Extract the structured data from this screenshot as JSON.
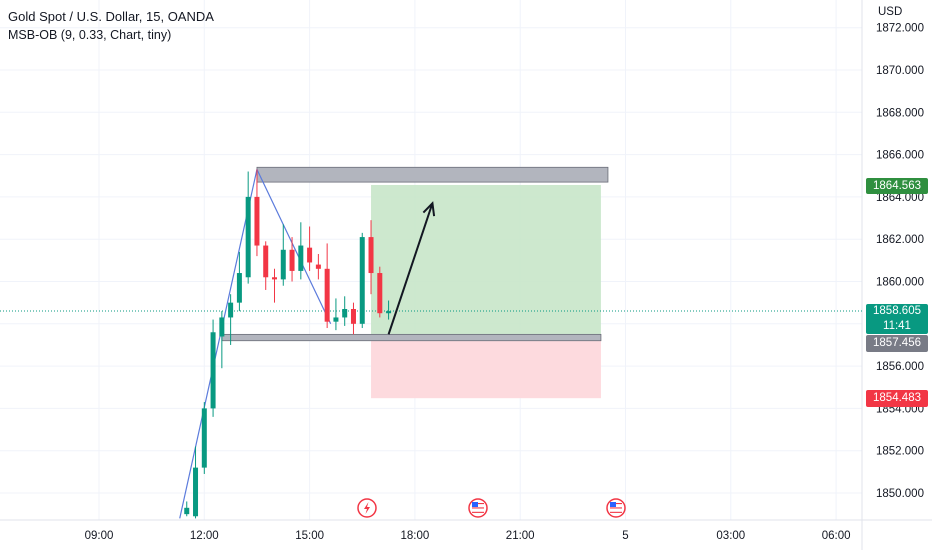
{
  "header": {
    "title": "Gold Spot / U.S. Dollar, 15, OANDA",
    "indicator": "MSB-OB (9, 0.33, Chart, tiny)"
  },
  "axis": {
    "currency": "USD"
  },
  "price_badges": {
    "target": "1864.563",
    "current_price": "1858.605",
    "countdown": "11:41",
    "entry": "1857.456",
    "stop": "1854.483"
  },
  "colors": {
    "bull": "#089981",
    "bear": "#f23645",
    "profit_zone": "#c8e6c9",
    "loss_zone": "#fdd8dc",
    "order_block": "#b2b5be",
    "trendline": "#5b7bdc"
  },
  "icons": [
    "lightning-event-icon",
    "us-flag-event-icon",
    "us-flag-event-icon"
  ],
  "chart_data": {
    "type": "candlestick",
    "title": "Gold Spot / U.S. Dollar, 15, OANDA",
    "ylabel": "USD",
    "y_ticks": [
      "1850.000",
      "1852.000",
      "1854.000",
      "1856.000",
      "1858.000",
      "1860.000",
      "1862.000",
      "1864.000",
      "1866.000",
      "1868.000",
      "1870.000",
      "1872.000"
    ],
    "x_ticks": [
      "09:00",
      "12:00",
      "15:00",
      "18:00",
      "21:00",
      "5",
      "03:00",
      "06:00"
    ],
    "ylim": [
      1848.8,
      1872.4
    ],
    "grid": true,
    "candles": [
      {
        "t": 11.5,
        "o": 1849.0,
        "h": 1849.6,
        "l": 1848.9,
        "c": 1849.3
      },
      {
        "t": 11.75,
        "o": 1848.9,
        "h": 1852.2,
        "l": 1848.8,
        "c": 1851.2
      },
      {
        "t": 12.0,
        "o": 1851.2,
        "h": 1854.3,
        "l": 1850.9,
        "c": 1854.0
      },
      {
        "t": 12.25,
        "o": 1854.0,
        "h": 1858.2,
        "l": 1853.6,
        "c": 1857.6
      },
      {
        "t": 12.5,
        "o": 1857.4,
        "h": 1858.6,
        "l": 1855.9,
        "c": 1858.3
      },
      {
        "t": 12.75,
        "o": 1858.3,
        "h": 1859.4,
        "l": 1857.0,
        "c": 1859.0
      },
      {
        "t": 13.0,
        "o": 1859.0,
        "h": 1861.4,
        "l": 1858.6,
        "c": 1860.4
      },
      {
        "t": 13.25,
        "o": 1860.2,
        "h": 1865.2,
        "l": 1859.9,
        "c": 1864.0
      },
      {
        "t": 13.5,
        "o": 1864.0,
        "h": 1865.3,
        "l": 1861.2,
        "c": 1861.7
      },
      {
        "t": 13.75,
        "o": 1861.7,
        "h": 1861.9,
        "l": 1859.6,
        "c": 1860.2
      },
      {
        "t": 14.0,
        "o": 1860.2,
        "h": 1860.6,
        "l": 1859.0,
        "c": 1860.1
      },
      {
        "t": 14.25,
        "o": 1860.1,
        "h": 1862.7,
        "l": 1859.8,
        "c": 1861.5
      },
      {
        "t": 14.5,
        "o": 1861.5,
        "h": 1862.1,
        "l": 1860.0,
        "c": 1860.5
      },
      {
        "t": 14.75,
        "o": 1860.5,
        "h": 1862.8,
        "l": 1860.1,
        "c": 1861.7
      },
      {
        "t": 15.0,
        "o": 1861.6,
        "h": 1862.6,
        "l": 1860.5,
        "c": 1860.9
      },
      {
        "t": 15.25,
        "o": 1860.8,
        "h": 1861.3,
        "l": 1860.1,
        "c": 1860.6
      },
      {
        "t": 15.5,
        "o": 1860.6,
        "h": 1861.8,
        "l": 1857.8,
        "c": 1858.1
      },
      {
        "t": 15.75,
        "o": 1858.1,
        "h": 1859.2,
        "l": 1857.7,
        "c": 1858.3
      },
      {
        "t": 16.0,
        "o": 1858.3,
        "h": 1859.3,
        "l": 1857.9,
        "c": 1858.7
      },
      {
        "t": 16.25,
        "o": 1858.7,
        "h": 1859.0,
        "l": 1857.5,
        "c": 1858.0
      },
      {
        "t": 16.5,
        "o": 1858.0,
        "h": 1862.3,
        "l": 1857.8,
        "c": 1862.1
      },
      {
        "t": 16.75,
        "o": 1862.1,
        "h": 1862.9,
        "l": 1859.4,
        "c": 1860.4
      },
      {
        "t": 17.0,
        "o": 1860.4,
        "h": 1860.7,
        "l": 1858.3,
        "c": 1858.5
      },
      {
        "t": 17.25,
        "o": 1858.5,
        "h": 1859.1,
        "l": 1858.2,
        "c": 1858.6
      }
    ],
    "order_blocks": [
      {
        "from": 13.5,
        "to": 23.5,
        "high": 1865.4,
        "low": 1864.7
      },
      {
        "from": 12.5,
        "to": 23.3,
        "high": 1857.5,
        "low": 1857.2
      }
    ],
    "position": {
      "from": 16.75,
      "to": 23.3,
      "entry": 1857.456,
      "target": 1864.563,
      "stop": 1854.483
    },
    "trendlines": [
      [
        [
          11.3,
          1848.8
        ],
        [
          13.5,
          1865.3
        ]
      ],
      [
        [
          13.5,
          1865.3
        ],
        [
          15.6,
          1858.0
        ]
      ]
    ],
    "arrow": {
      "from": [
        17.25,
        1857.5
      ],
      "to": [
        18.5,
        1863.7
      ]
    },
    "current_price": 1858.605
  }
}
